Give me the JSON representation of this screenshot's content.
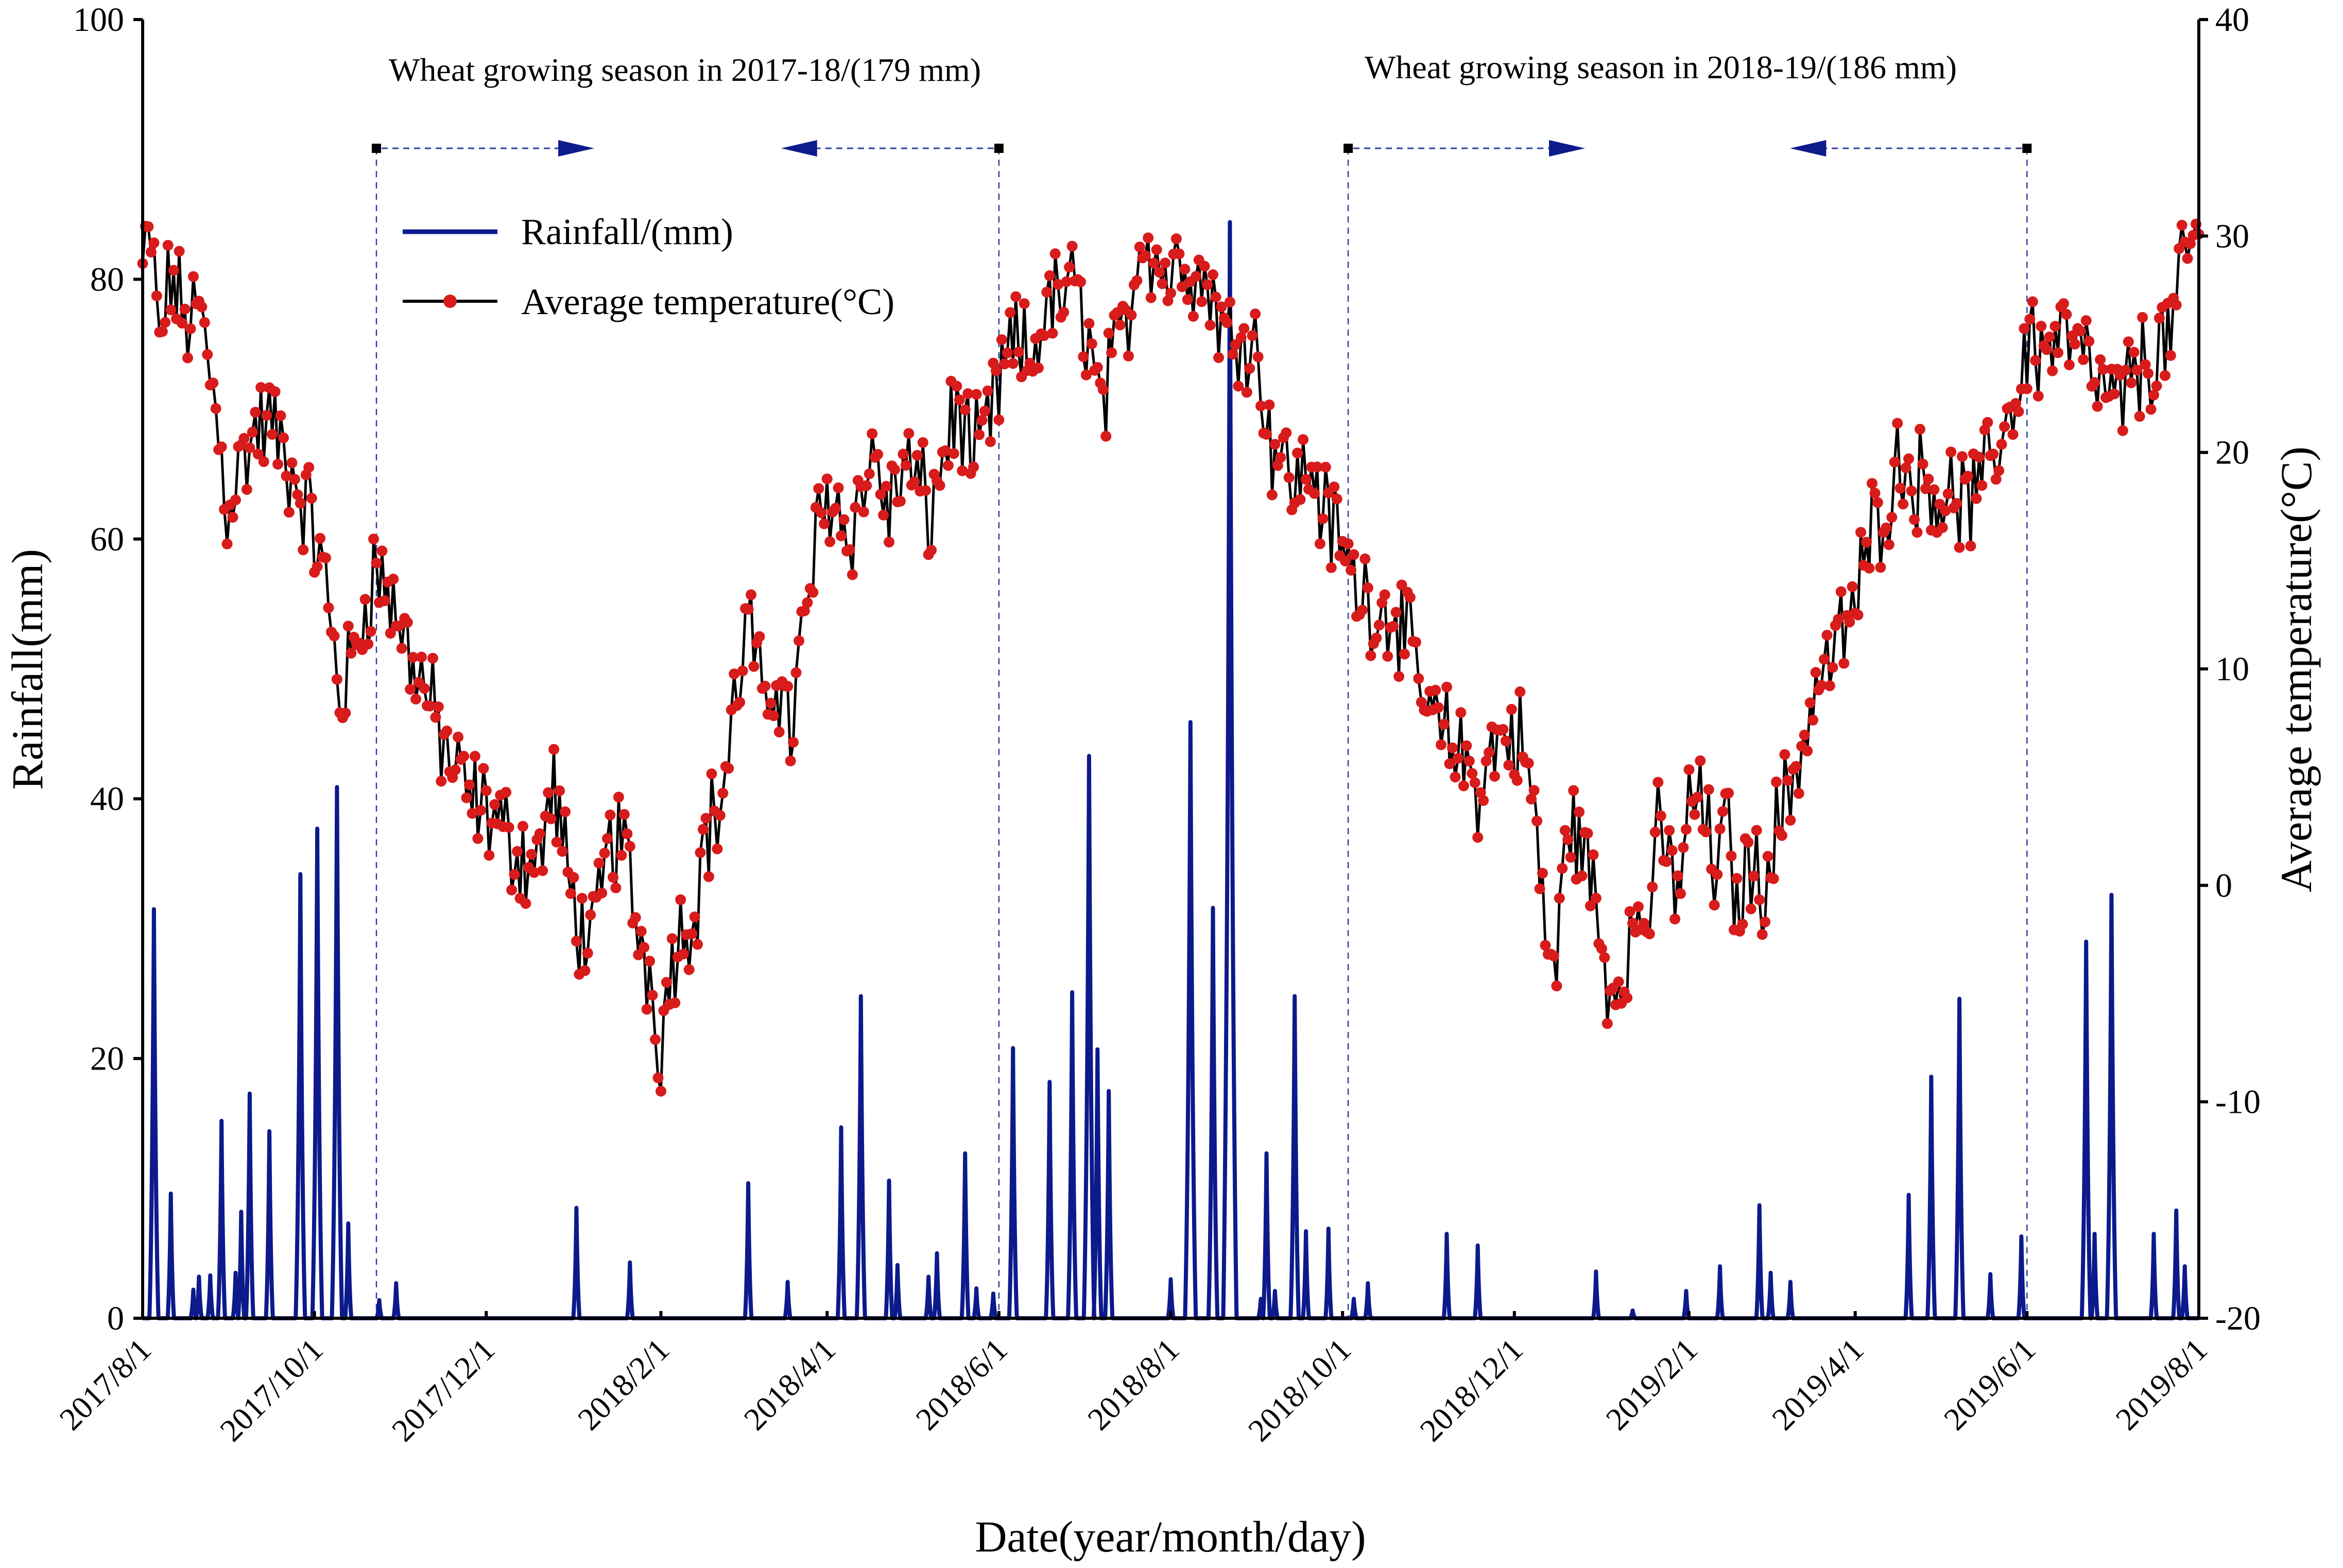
{
  "chart_data": {
    "type": "line",
    "x_axis": {
      "label": "Date(year/month/day)",
      "tick_labels": [
        "2017/8/1",
        "2017/10/1",
        "2017/12/1",
        "2018/2/1",
        "2018/4/1",
        "2018/6/1",
        "2018/8/1",
        "2018/10/1",
        "2018/12/1",
        "2019/2/1",
        "2019/4/1",
        "2019/6/1",
        "2019/8/1"
      ],
      "tick_days": [
        0,
        61,
        122,
        184,
        243,
        304,
        365,
        426,
        487,
        549,
        608,
        669,
        730
      ],
      "range_days": [
        0,
        730
      ]
    },
    "y_left": {
      "label": "Rainfall(mm)",
      "range": [
        0,
        100
      ],
      "ticks": [
        0,
        20,
        40,
        60,
        80,
        100
      ],
      "tick_labels": [
        "0",
        "20",
        "40",
        "60",
        "80",
        "100"
      ]
    },
    "y_right": {
      "label": "Average temperature(°C)",
      "range": [
        -20,
        40
      ],
      "ticks": [
        -20,
        -10,
        0,
        10,
        20,
        30,
        40
      ],
      "tick_labels": [
        "-20",
        "-10",
        "0",
        "10",
        "20",
        "30",
        "40"
      ]
    },
    "legend": {
      "position": "top-left",
      "entries": [
        {
          "label": "Rainfall/(mm)",
          "color": "#0c1a8c",
          "marker": "none"
        },
        {
          "label": "Average temperature(°C)",
          "color": "#000000",
          "marker": "#d81b1b"
        }
      ]
    },
    "annotations": [
      {
        "text": "Wheat growing season in 2017-18/(179 mm)",
        "start_day": 83,
        "end_day": 304
      },
      {
        "text": "Wheat growing season in 2018-19/(186 mm)",
        "start_day": 428,
        "end_day": 669
      }
    ],
    "series": [
      {
        "name": "Rainfall/(mm)",
        "color": "#0c1a8c",
        "axis": "left",
        "events": [
          {
            "day": 4,
            "value": 31.5
          },
          {
            "day": 10,
            "value": 9.6
          },
          {
            "day": 18,
            "value": 2.2
          },
          {
            "day": 20,
            "value": 3.2
          },
          {
            "day": 24,
            "value": 3.3
          },
          {
            "day": 28,
            "value": 15.2
          },
          {
            "day": 33,
            "value": 3.5
          },
          {
            "day": 35,
            "value": 8.2
          },
          {
            "day": 38,
            "value": 17.3
          },
          {
            "day": 45,
            "value": 14.4
          },
          {
            "day": 56,
            "value": 34.2
          },
          {
            "day": 62,
            "value": 37.7
          },
          {
            "day": 69,
            "value": 40.9
          },
          {
            "day": 73,
            "value": 7.3
          },
          {
            "day": 84,
            "value": 1.4
          },
          {
            "day": 90,
            "value": 2.7
          },
          {
            "day": 154,
            "value": 8.5
          },
          {
            "day": 173,
            "value": 4.3
          },
          {
            "day": 215,
            "value": 10.4
          },
          {
            "day": 229,
            "value": 2.8
          },
          {
            "day": 248,
            "value": 14.7
          },
          {
            "day": 255,
            "value": 24.8
          },
          {
            "day": 265,
            "value": 10.6
          },
          {
            "day": 268,
            "value": 4.1
          },
          {
            "day": 279,
            "value": 3.2
          },
          {
            "day": 282,
            "value": 5.0
          },
          {
            "day": 292,
            "value": 12.7
          },
          {
            "day": 296,
            "value": 2.3
          },
          {
            "day": 302,
            "value": 1.9
          },
          {
            "day": 309,
            "value": 20.8
          },
          {
            "day": 322,
            "value": 18.2
          },
          {
            "day": 330,
            "value": 25.1
          },
          {
            "day": 336,
            "value": 43.3
          },
          {
            "day": 339,
            "value": 20.7
          },
          {
            "day": 343,
            "value": 17.5
          },
          {
            "day": 365,
            "value": 3.0
          },
          {
            "day": 372,
            "value": 45.9
          },
          {
            "day": 380,
            "value": 31.6
          },
          {
            "day": 386,
            "value": 84.4
          },
          {
            "day": 397,
            "value": 1.5
          },
          {
            "day": 399,
            "value": 12.7
          },
          {
            "day": 402,
            "value": 2.1
          },
          {
            "day": 409,
            "value": 24.8
          },
          {
            "day": 413,
            "value": 6.7
          },
          {
            "day": 421,
            "value": 6.9
          },
          {
            "day": 430,
            "value": 1.5
          },
          {
            "day": 435,
            "value": 2.7
          },
          {
            "day": 463,
            "value": 6.5
          },
          {
            "day": 474,
            "value": 5.6
          },
          {
            "day": 516,
            "value": 3.6
          },
          {
            "day": 529,
            "value": 0.6
          },
          {
            "day": 548,
            "value": 2.1
          },
          {
            "day": 560,
            "value": 4.0
          },
          {
            "day": 574,
            "value": 8.7
          },
          {
            "day": 578,
            "value": 3.5
          },
          {
            "day": 585,
            "value": 2.8
          },
          {
            "day": 627,
            "value": 9.5
          },
          {
            "day": 635,
            "value": 18.6
          },
          {
            "day": 645,
            "value": 24.6
          },
          {
            "day": 656,
            "value": 3.4
          },
          {
            "day": 667,
            "value": 6.3
          },
          {
            "day": 690,
            "value": 29.0
          },
          {
            "day": 693,
            "value": 6.5
          },
          {
            "day": 699,
            "value": 32.6
          },
          {
            "day": 714,
            "value": 6.5
          },
          {
            "day": 722,
            "value": 8.3
          },
          {
            "day": 725,
            "value": 4.0
          }
        ]
      },
      {
        "name": "Average temperature(°C)",
        "color": "#000000",
        "marker_color": "#d81b1b",
        "axis": "right",
        "anchors": [
          [
            0,
            28.5
          ],
          [
            3,
            29.8
          ],
          [
            6,
            25.0
          ],
          [
            10,
            28.2
          ],
          [
            15,
            26.0
          ],
          [
            20,
            26.5
          ],
          [
            23,
            24.5
          ],
          [
            27,
            20.8
          ],
          [
            30,
            17.5
          ],
          [
            35,
            19.5
          ],
          [
            40,
            21.0
          ],
          [
            45,
            21.4
          ],
          [
            50,
            20.0
          ],
          [
            55,
            18.5
          ],
          [
            60,
            16.8
          ],
          [
            64,
            14.5
          ],
          [
            67,
            12.0
          ],
          [
            70,
            8.8
          ],
          [
            74,
            10.0
          ],
          [
            78,
            12.5
          ],
          [
            82,
            14.5
          ],
          [
            86,
            14.0
          ],
          [
            90,
            12.5
          ],
          [
            94,
            11.0
          ],
          [
            99,
            9.5
          ],
          [
            104,
            7.5
          ],
          [
            110,
            5.5
          ],
          [
            116,
            4.0
          ],
          [
            122,
            3.5
          ],
          [
            128,
            2.5
          ],
          [
            134,
            1.5
          ],
          [
            140,
            1.0
          ],
          [
            146,
            4.5
          ],
          [
            152,
            -0.5
          ],
          [
            156,
            -2.0
          ],
          [
            160,
            -3.0
          ],
          [
            165,
            1.5
          ],
          [
            170,
            2.5
          ],
          [
            175,
            -1.5
          ],
          [
            180,
            -4.0
          ],
          [
            184,
            -7.5
          ],
          [
            188,
            -3.0
          ],
          [
            192,
            -2.0
          ],
          [
            196,
            -1.0
          ],
          [
            200,
            2.5
          ],
          [
            205,
            3.5
          ],
          [
            210,
            8.0
          ],
          [
            215,
            12.5
          ],
          [
            220,
            8.0
          ],
          [
            225,
            10.0
          ],
          [
            230,
            7.0
          ],
          [
            235,
            12.0
          ],
          [
            240,
            16.5
          ],
          [
            245,
            18.5
          ],
          [
            250,
            16.0
          ],
          [
            255,
            18.0
          ],
          [
            260,
            20.0
          ],
          [
            265,
            17.0
          ],
          [
            270,
            19.5
          ],
          [
            275,
            18.5
          ],
          [
            280,
            17.0
          ],
          [
            285,
            20.5
          ],
          [
            290,
            22.0
          ],
          [
            295,
            19.5
          ],
          [
            300,
            21.0
          ],
          [
            305,
            23.5
          ],
          [
            310,
            25.0
          ],
          [
            315,
            24.0
          ],
          [
            320,
            26.5
          ],
          [
            325,
            27.0
          ],
          [
            330,
            27.5
          ],
          [
            335,
            26.0
          ],
          [
            340,
            22.0
          ],
          [
            345,
            24.0
          ],
          [
            350,
            26.5
          ],
          [
            355,
            30.5
          ],
          [
            360,
            29.0
          ],
          [
            365,
            28.0
          ],
          [
            370,
            29.5
          ],
          [
            375,
            28.0
          ],
          [
            380,
            27.5
          ],
          [
            385,
            25.0
          ],
          [
            390,
            26.0
          ],
          [
            395,
            25.0
          ],
          [
            400,
            21.0
          ],
          [
            405,
            19.5
          ],
          [
            410,
            18.5
          ],
          [
            415,
            19.5
          ],
          [
            420,
            17.0
          ],
          [
            425,
            16.0
          ],
          [
            430,
            14.0
          ],
          [
            435,
            13.5
          ],
          [
            440,
            12.5
          ],
          [
            445,
            13.0
          ],
          [
            450,
            10.5
          ],
          [
            455,
            8.5
          ],
          [
            460,
            7.0
          ],
          [
            465,
            6.5
          ],
          [
            470,
            5.5
          ],
          [
            475,
            4.5
          ],
          [
            480,
            6.5
          ],
          [
            485,
            7.0
          ],
          [
            490,
            6.5
          ],
          [
            495,
            2.5
          ],
          [
            498,
            -2.5
          ],
          [
            502,
            -4.0
          ],
          [
            506,
            3.5
          ],
          [
            510,
            2.0
          ],
          [
            514,
            0.5
          ],
          [
            518,
            -3.0
          ],
          [
            522,
            -5.0
          ],
          [
            526,
            -3.0
          ],
          [
            530,
            -2.0
          ],
          [
            534,
            -1.5
          ],
          [
            538,
            2.0
          ],
          [
            542,
            1.0
          ],
          [
            546,
            0.0
          ],
          [
            550,
            4.5
          ],
          [
            554,
            3.5
          ],
          [
            558,
            0.5
          ],
          [
            562,
            3.0
          ],
          [
            566,
            -1.0
          ],
          [
            570,
            1.0
          ],
          [
            574,
            0.0
          ],
          [
            578,
            1.5
          ],
          [
            582,
            3.5
          ],
          [
            586,
            5.0
          ],
          [
            590,
            7.0
          ],
          [
            595,
            9.5
          ],
          [
            600,
            10.5
          ],
          [
            605,
            12.0
          ],
          [
            610,
            14.0
          ],
          [
            615,
            17.0
          ],
          [
            620,
            18.0
          ],
          [
            625,
            20.0
          ],
          [
            630,
            18.5
          ],
          [
            635,
            19.0
          ],
          [
            640,
            17.5
          ],
          [
            645,
            18.0
          ],
          [
            650,
            17.5
          ],
          [
            655,
            19.0
          ],
          [
            660,
            21.0
          ],
          [
            665,
            22.5
          ],
          [
            670,
            25.5
          ],
          [
            675,
            24.5
          ],
          [
            680,
            25.5
          ],
          [
            685,
            25.0
          ],
          [
            690,
            24.0
          ],
          [
            695,
            23.0
          ],
          [
            700,
            22.0
          ],
          [
            705,
            23.0
          ],
          [
            710,
            24.0
          ],
          [
            715,
            24.5
          ],
          [
            720,
            25.5
          ],
          [
            725,
            28.5
          ],
          [
            728,
            30.0
          ],
          [
            730,
            30.0
          ]
        ],
        "noise_amplitude_c": 2.0
      }
    ]
  }
}
